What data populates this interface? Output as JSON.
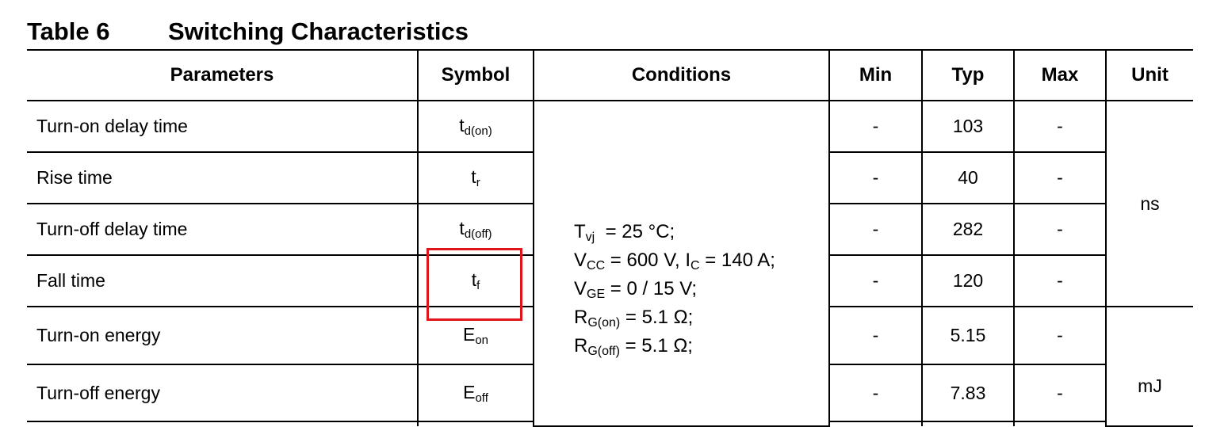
{
  "title": {
    "number": "Table 6",
    "name": "Switching Characteristics"
  },
  "headers": [
    "Parameters",
    "Symbol",
    "Conditions",
    "Min",
    "Typ",
    "Max",
    "Unit"
  ],
  "rows": [
    {
      "param": "Turn-on delay time",
      "sym": "t",
      "sub": "d(on)",
      "min": "-",
      "typ": "103",
      "max": "-"
    },
    {
      "param": "Rise time",
      "sym": "t",
      "sub": "r",
      "min": "-",
      "typ": "40",
      "max": "-"
    },
    {
      "param": "Turn-off delay time",
      "sym": "t",
      "sub": "d(off)",
      "min": "-",
      "typ": "282",
      "max": "-"
    },
    {
      "param": "Fall time",
      "sym": "t",
      "sub": "f",
      "min": "-",
      "typ": "120",
      "max": "-"
    },
    {
      "param": "Turn-on energy",
      "sym": "E",
      "sub": "on",
      "min": "-",
      "typ": "5.15",
      "max": "-"
    },
    {
      "param": "Turn-off energy",
      "sym": "E",
      "sub": "off",
      "min": "-",
      "typ": "7.83",
      "max": "-"
    }
  ],
  "conditions": [
    {
      "a": "T",
      "as": "vj",
      "b": "  = 25 °C;"
    },
    {
      "a": "V",
      "as": "CC",
      "b": " = 600 V, I",
      "bs": "C",
      "c": " = 140 A;"
    },
    {
      "a": "V",
      "as": "GE",
      "b": " = 0 / 15 V;"
    },
    {
      "a": "R",
      "as": "G(on)",
      "b": " = 5.1 Ω;"
    },
    {
      "a": "R",
      "as": "G(off)",
      "b": " = 5.1 Ω;"
    }
  ],
  "units": {
    "time": "ns",
    "energy": "mJ"
  },
  "highlight_color": "#e0141b"
}
